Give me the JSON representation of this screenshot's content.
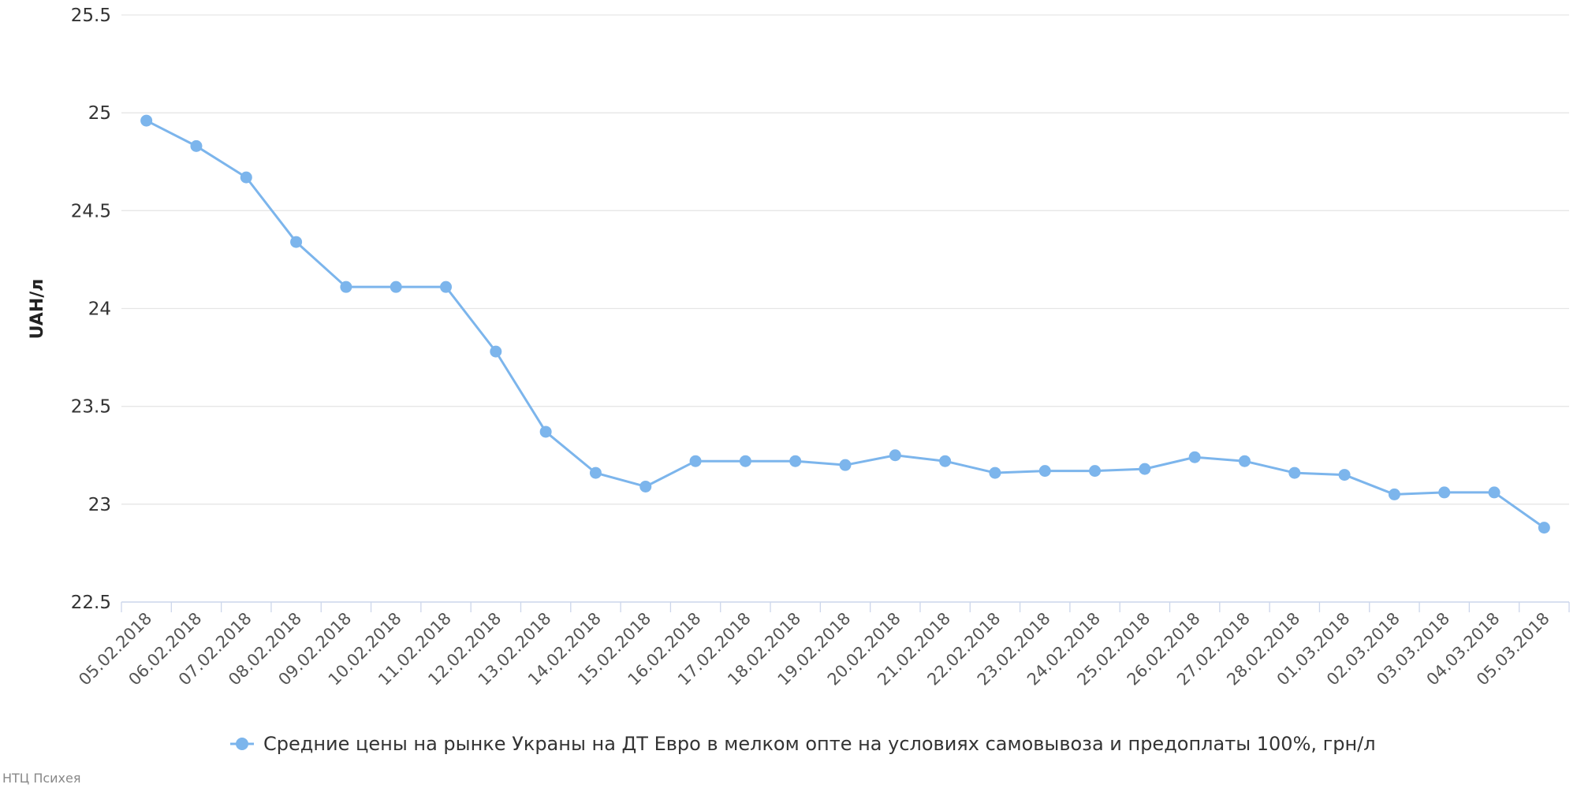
{
  "chart_data": {
    "type": "line",
    "title": "",
    "xlabel": "",
    "ylabel": "UAH/л",
    "ylim": [
      22.5,
      25.5
    ],
    "yticks": [
      22.5,
      23,
      23.5,
      24,
      24.5,
      25,
      25.5
    ],
    "ytick_labels": [
      "22.5",
      "23",
      "23.5",
      "24",
      "24.5",
      "25",
      "25.5"
    ],
    "grid": true,
    "legend_position": "bottom",
    "categories": [
      "05.02.2018",
      "06.02.2018",
      "07.02.2018",
      "08.02.2018",
      "09.02.2018",
      "10.02.2018",
      "11.02.2018",
      "12.02.2018",
      "13.02.2018",
      "14.02.2018",
      "15.02.2018",
      "16.02.2018",
      "17.02.2018",
      "18.02.2018",
      "19.02.2018",
      "20.02.2018",
      "21.02.2018",
      "22.02.2018",
      "23.02.2018",
      "24.02.2018",
      "25.02.2018",
      "26.02.2018",
      "27.02.2018",
      "28.02.2018",
      "01.03.2018",
      "02.03.2018",
      "03.03.2018",
      "04.03.2018",
      "05.03.2018"
    ],
    "series": [
      {
        "name": "Средние цены на рынке Украны на ДТ Евро в мелком опте на условиях самовывоза и предоплаты 100%, грн/л",
        "color": "#7cb5ec",
        "values": [
          24.96,
          24.83,
          24.67,
          24.34,
          24.11,
          24.11,
          24.11,
          23.78,
          23.37,
          23.16,
          23.09,
          23.22,
          23.22,
          23.22,
          23.2,
          23.25,
          23.22,
          23.16,
          23.17,
          23.17,
          23.18,
          23.24,
          23.22,
          23.16,
          23.15,
          23.05,
          23.06,
          23.06,
          22.88
        ]
      }
    ]
  },
  "credit": "НТЦ Психея",
  "colors": {
    "grid": "#e6e6e6",
    "axis": "#ccd6eb",
    "series": "#7cb5ec"
  }
}
